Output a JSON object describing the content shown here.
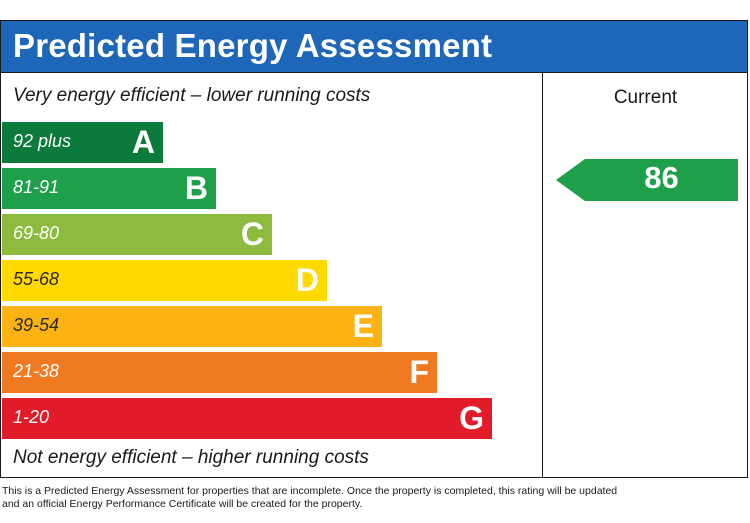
{
  "chart_data": {
    "type": "bar",
    "title": "Predicted Energy Assessment",
    "top_caption": "Very energy efficient – lower running costs",
    "bottom_caption": "Not energy efficient – higher running costs",
    "column_header": "Current",
    "bands": [
      {
        "letter": "A",
        "range": "92 plus",
        "min": 92,
        "max": 100,
        "color": "#0b7a3a"
      },
      {
        "letter": "B",
        "range": "81-91",
        "min": 81,
        "max": 91,
        "color": "#1ea04a"
      },
      {
        "letter": "C",
        "range": "69-80",
        "min": 69,
        "max": 80,
        "color": "#8dbb3e"
      },
      {
        "letter": "D",
        "range": "55-68",
        "min": 55,
        "max": 68,
        "color": "#ffd900"
      },
      {
        "letter": "E",
        "range": "39-54",
        "min": 39,
        "max": 54,
        "color": "#fbb213"
      },
      {
        "letter": "F",
        "range": "21-38",
        "min": 21,
        "max": 38,
        "color": "#ef7a22"
      },
      {
        "letter": "G",
        "range": "1-20",
        "min": 1,
        "max": 20,
        "color": "#e21b2b"
      }
    ],
    "current": {
      "value": 86,
      "band": "B",
      "color": "#1ea04a"
    }
  },
  "header_color": "#1d66b8",
  "footnote": "This is a Predicted Energy Assessment for properties that are incomplete. Once the property is completed, this rating will be updated and an official Energy Performance Certificate will be created for the property."
}
